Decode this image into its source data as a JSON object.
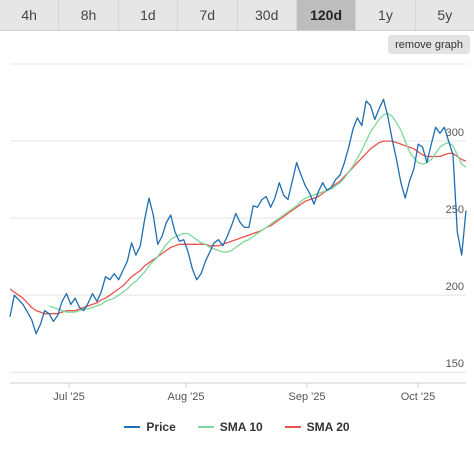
{
  "tabs": [
    {
      "label": "4h",
      "active": false
    },
    {
      "label": "8h",
      "active": false
    },
    {
      "label": "1d",
      "active": false
    },
    {
      "label": "7d",
      "active": false
    },
    {
      "label": "30d",
      "active": false
    },
    {
      "label": "120d",
      "active": true
    },
    {
      "label": "1y",
      "active": false
    },
    {
      "label": "5y",
      "active": false
    }
  ],
  "remove_graph_label": "remove graph",
  "chart_data": {
    "type": "line",
    "x_labels": [
      "Jul '25",
      "Aug '25",
      "Sep '25",
      "Oct '25"
    ],
    "y_ticks": [
      150,
      200,
      250,
      300
    ],
    "ylim": [
      143,
      350
    ],
    "grid": true,
    "legend_position": "bottom",
    "series": [
      {
        "name": "Price",
        "color": "#1f6eb0",
        "values": [
          186,
          200,
          197,
          194,
          189,
          184,
          175,
          181,
          190,
          188,
          183,
          187,
          196,
          201,
          194,
          198,
          192,
          190,
          195,
          201,
          196,
          202,
          212,
          210,
          214,
          210,
          216,
          222,
          234,
          226,
          232,
          249,
          263,
          252,
          233,
          238,
          247,
          252,
          241,
          235,
          236,
          228,
          217,
          210,
          214,
          222,
          228,
          234,
          236,
          232,
          238,
          245,
          253,
          247,
          244,
          244,
          258,
          257,
          262,
          264,
          257,
          263,
          273,
          265,
          262,
          274,
          286,
          278,
          271,
          266,
          259,
          267,
          273,
          268,
          270,
          275,
          278,
          286,
          296,
          308,
          315,
          310,
          326,
          323,
          314,
          321,
          327,
          316,
          301,
          288,
          273,
          263,
          274,
          282,
          298,
          296,
          286,
          298,
          309,
          305,
          309,
          300,
          291,
          241,
          226,
          255
        ]
      },
      {
        "name": "SMA 10",
        "color": "#7fd89b",
        "values": [
          null,
          null,
          null,
          null,
          null,
          null,
          null,
          null,
          null,
          193,
          192,
          191,
          190,
          189,
          189,
          189,
          190,
          191,
          191,
          192,
          193,
          194,
          196,
          197,
          198,
          200,
          202,
          204,
          207,
          209,
          212,
          215,
          219,
          222,
          225,
          229,
          233,
          236,
          238,
          239,
          240,
          240,
          238,
          236,
          234,
          233,
          231,
          230,
          229,
          228,
          228,
          229,
          231,
          233,
          235,
          236,
          238,
          240,
          242,
          244,
          246,
          248,
          250,
          252,
          254,
          256,
          258,
          261,
          263,
          264,
          265,
          266,
          267,
          268,
          269,
          271,
          273,
          276,
          280,
          284,
          289,
          294,
          300,
          306,
          310,
          314,
          317,
          318,
          316,
          312,
          307,
          300,
          293,
          289,
          286,
          285,
          286,
          288,
          292,
          296,
          298,
          299,
          297,
          291,
          285,
          283
        ]
      },
      {
        "name": "SMA 20",
        "color": "#e8544d",
        "values": [
          204,
          202,
          200,
          198,
          195,
          192,
          190,
          189,
          188,
          188,
          188,
          188,
          189,
          190,
          190,
          190,
          191,
          192,
          193,
          194,
          195,
          197,
          198,
          200,
          202,
          204,
          206,
          209,
          212,
          214,
          216,
          219,
          221,
          223,
          225,
          227,
          229,
          231,
          232,
          233,
          233,
          233,
          233,
          233,
          233,
          233,
          232,
          232,
          232,
          233,
          234,
          235,
          236,
          237,
          238,
          239,
          240,
          241,
          242,
          244,
          245,
          247,
          249,
          251,
          253,
          255,
          257,
          259,
          261,
          262,
          263,
          264,
          266,
          268,
          270,
          272,
          274,
          277,
          280,
          283,
          286,
          289,
          292,
          295,
          297,
          299,
          300,
          300,
          300,
          299,
          298,
          297,
          296,
          295,
          293,
          291,
          290,
          290,
          290,
          290,
          291,
          292,
          292,
          290,
          288,
          287
        ]
      }
    ]
  }
}
